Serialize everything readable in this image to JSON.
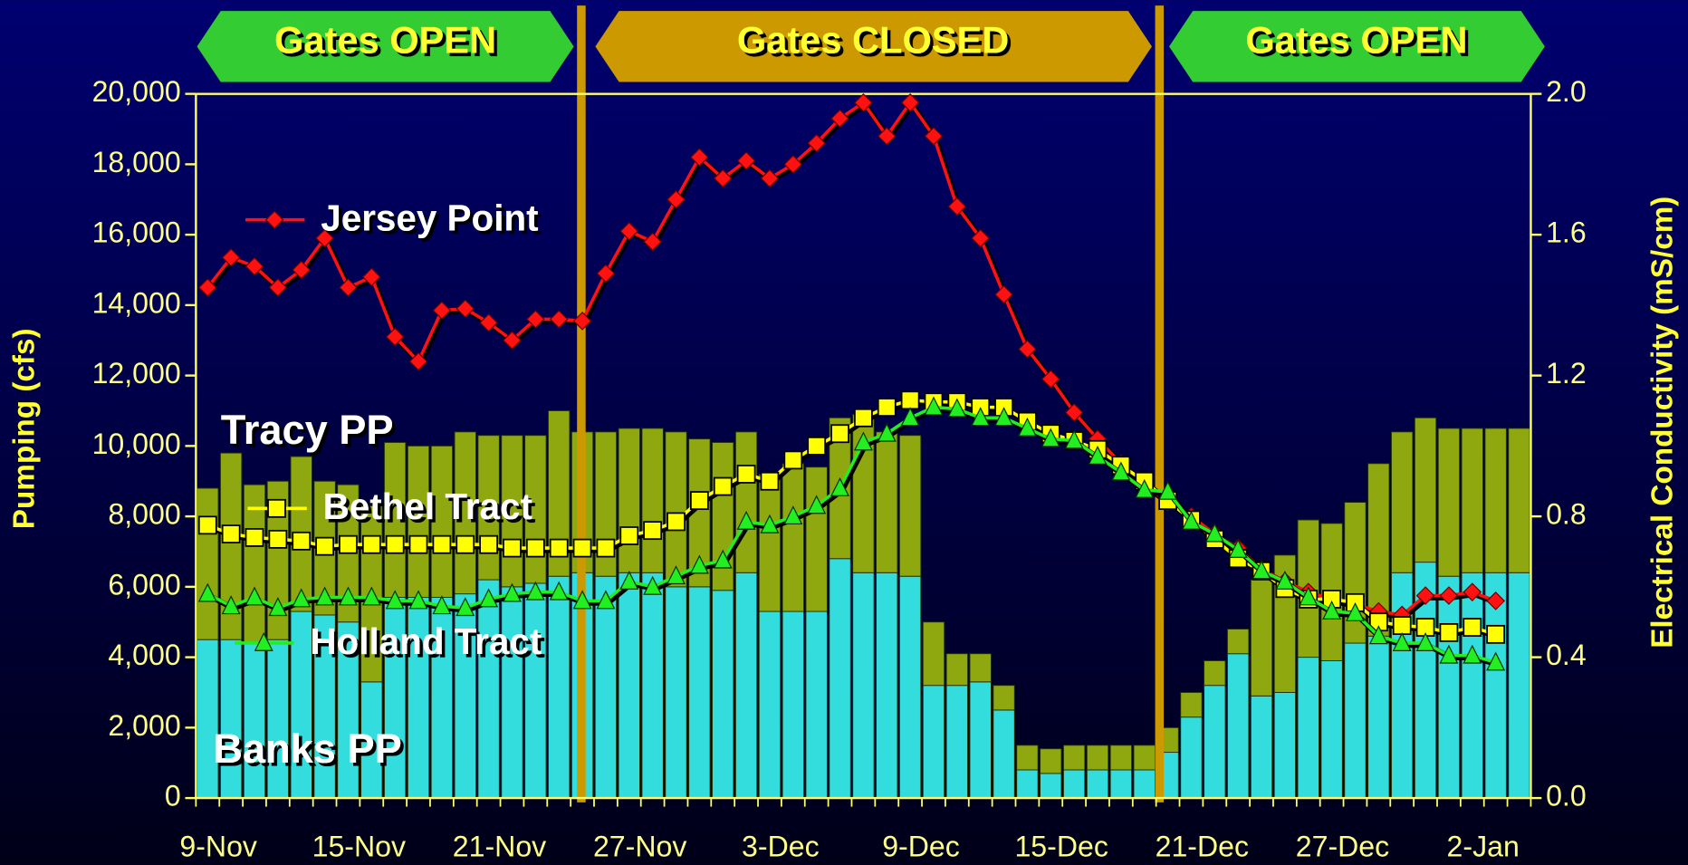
{
  "chart_data": {
    "type": "combo",
    "gate_labels": [
      "Gates OPEN",
      "Gates CLOSED",
      "Gates OPEN"
    ],
    "ylabel": "Pumping (cfs)",
    "y2label": "Electrical Conductivity (mS/cm)",
    "categories": [
      "9-Nov",
      null,
      null,
      null,
      null,
      null,
      "15-Nov",
      null,
      null,
      null,
      null,
      null,
      "21-Nov",
      null,
      null,
      null,
      null,
      null,
      "27-Nov",
      null,
      null,
      null,
      null,
      null,
      "3-Dec",
      null,
      null,
      null,
      null,
      null,
      "9-Dec",
      null,
      null,
      null,
      null,
      null,
      "15-Dec",
      null,
      null,
      null,
      null,
      null,
      "21-Dec",
      null,
      null,
      null,
      null,
      null,
      "27-Dec",
      null,
      null,
      null,
      null,
      null,
      "2-Jan",
      null,
      null
    ],
    "ylim": [
      0,
      20000
    ],
    "yticks": [
      0,
      {
        "value": 2000,
        "label": "2,000"
      },
      {
        "value": 4000,
        "label": "4,000"
      },
      {
        "value": 6000,
        "label": "6,000"
      },
      {
        "value": 8000,
        "label": "8,000"
      },
      {
        "value": 10000,
        "label": "10,000"
      },
      {
        "value": 12000,
        "label": "12,000"
      },
      {
        "value": 14000,
        "label": "14,000"
      },
      {
        "value": 16000,
        "label": "16,000"
      },
      {
        "value": 18000,
        "label": "18,000"
      },
      {
        "value": 20000,
        "label": "20,000"
      }
    ],
    "y2lim": [
      0,
      2.0
    ],
    "y2ticks": [
      {
        "value": 0,
        "label": "0.0"
      },
      0.4,
      0.8,
      1.2,
      1.6,
      {
        "value": 2,
        "label": "2.0"
      }
    ],
    "series": [
      {
        "name": "Banks PP",
        "type": "bar",
        "color": "#33dddd",
        "values": [
          4500,
          4500,
          4400,
          4500,
          5300,
          5200,
          5000,
          3300,
          5700,
          5700,
          5700,
          5800,
          6200,
          6000,
          6100,
          6300,
          6400,
          6300,
          6400,
          6400,
          6000,
          6000,
          5900,
          6400,
          5300,
          5300,
          5300,
          6800,
          6400,
          6400,
          6300,
          3200,
          3200,
          3300,
          2500,
          800,
          700,
          800,
          800,
          800,
          800,
          1300,
          2300,
          3200,
          4100,
          2900,
          3000,
          4000,
          3900,
          4400,
          4600,
          6400,
          6700,
          6300,
          6400,
          6400,
          6400
        ]
      },
      {
        "name": "Tracy PP",
        "type": "bar",
        "color": "#8fa80f",
        "values": [
          4300,
          5300,
          4500,
          4500,
          4400,
          3800,
          3900,
          5000,
          4400,
          4300,
          4300,
          4600,
          4100,
          4300,
          4200,
          4700,
          4000,
          4100,
          4100,
          4100,
          4400,
          4200,
          4200,
          4000,
          3900,
          4200,
          4100,
          4000,
          4500,
          4000,
          4000,
          1800,
          900,
          800,
          700,
          700,
          700,
          700,
          700,
          700,
          700,
          700,
          700,
          700,
          700,
          3300,
          3900,
          3900,
          3900,
          4000,
          4900,
          4000,
          4100,
          4200,
          4100,
          4100,
          4100
        ]
      },
      {
        "name": "Jersey Point",
        "type": "line",
        "axis": "y2",
        "color": "#ff1111",
        "marker": "diamond",
        "values": [
          1.45,
          1.535,
          1.51,
          1.45,
          1.5,
          1.59,
          1.45,
          1.48,
          1.31,
          1.24,
          1.385,
          1.39,
          1.35,
          1.3,
          1.36,
          1.36,
          1.355,
          1.49,
          1.61,
          1.58,
          1.7,
          1.82,
          1.76,
          1.81,
          1.76,
          1.8,
          1.86,
          1.93,
          1.975,
          1.88,
          1.975,
          1.88,
          1.68,
          1.59,
          1.43,
          1.275,
          1.19,
          1.095,
          1.02,
          0.95,
          0.89,
          0.84,
          0.8,
          0.75,
          0.71,
          0.65,
          0.615,
          0.585,
          0.565,
          0.55,
          0.53,
          0.52,
          0.575,
          0.575,
          0.585,
          0.56,
          null
        ]
      },
      {
        "name": "Bethel Tract",
        "type": "line",
        "axis": "y2",
        "color": "#ffff00",
        "marker": "square",
        "values": [
          0.775,
          0.75,
          0.74,
          0.735,
          0.73,
          0.715,
          0.72,
          0.72,
          0.72,
          0.72,
          0.72,
          0.72,
          0.72,
          0.71,
          0.71,
          0.71,
          0.71,
          0.71,
          0.745,
          0.76,
          0.785,
          0.845,
          0.885,
          0.92,
          0.9,
          0.96,
          1.0,
          1.035,
          1.08,
          1.11,
          1.13,
          1.125,
          1.125,
          1.11,
          1.11,
          1.07,
          1.035,
          1.015,
          0.99,
          0.945,
          0.9,
          0.845,
          0.79,
          0.735,
          0.68,
          0.645,
          0.595,
          0.565,
          0.565,
          0.555,
          0.5,
          0.49,
          0.485,
          0.47,
          0.485,
          0.465,
          null
        ]
      },
      {
        "name": "Holland Tract",
        "type": "line",
        "axis": "y2",
        "color": "#22ee22",
        "marker": "triangle",
        "values": [
          0.58,
          0.545,
          0.57,
          0.54,
          0.565,
          0.57,
          0.57,
          0.57,
          0.56,
          0.56,
          0.545,
          0.54,
          0.565,
          0.58,
          0.585,
          0.585,
          0.56,
          0.56,
          0.615,
          0.6,
          0.63,
          0.66,
          0.675,
          0.785,
          0.775,
          0.8,
          0.83,
          0.88,
          1.01,
          1.035,
          1.08,
          1.11,
          1.105,
          1.08,
          1.08,
          1.05,
          1.02,
          1.015,
          0.97,
          0.925,
          0.875,
          0.87,
          0.785,
          0.75,
          0.705,
          0.645,
          0.615,
          0.57,
          0.53,
          0.525,
          0.46,
          0.44,
          0.44,
          0.405,
          0.405,
          0.385,
          null
        ]
      }
    ]
  }
}
